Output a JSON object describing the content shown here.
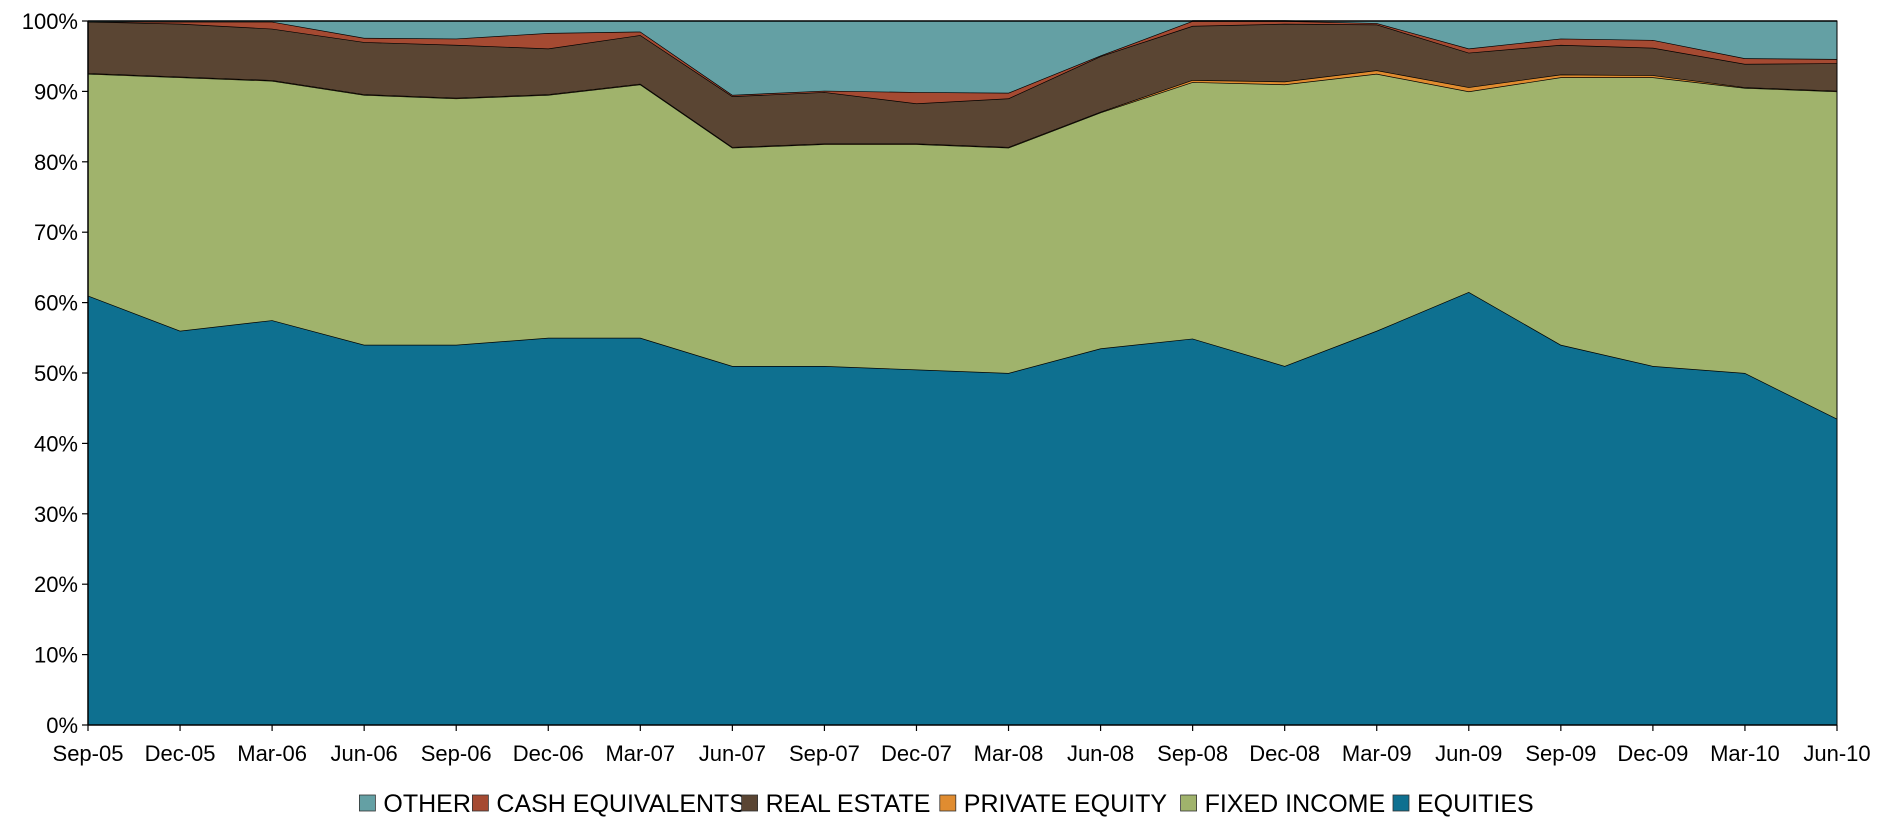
{
  "chart_data": {
    "type": "area",
    "stacked": true,
    "percent": true,
    "categories": [
      "Sep-05",
      "Dec-05",
      "Mar-06",
      "Jun-06",
      "Sep-06",
      "Dec-06",
      "Mar-07",
      "Jun-07",
      "Sep-07",
      "Dec-07",
      "Mar-08",
      "Jun-08",
      "Sep-08",
      "Dec-08",
      "Mar-09",
      "Jun-09",
      "Sep-09",
      "Dec-09",
      "Mar-10",
      "Jun-10"
    ],
    "yticks": [
      "0%",
      "10%",
      "20%",
      "30%",
      "40%",
      "50%",
      "60%",
      "70%",
      "80%",
      "90%",
      "100%"
    ],
    "ylim": [
      0,
      100
    ],
    "grid": false,
    "legend_position": "bottom",
    "series": [
      {
        "name": "EQUITIES",
        "color": "#0e7090",
        "values": [
          61.0,
          56.0,
          57.5,
          54.0,
          54.0,
          55.0,
          55.0,
          51.0,
          51.0,
          50.5,
          50.0,
          53.5,
          55.0,
          51.0,
          56.0,
          61.5,
          54.0,
          51.0,
          50.0,
          43.5
        ]
      },
      {
        "name": "FIXED INCOME",
        "color": "#a0b36c",
        "values": [
          31.5,
          36.0,
          34.0,
          35.5,
          35.0,
          34.5,
          36.0,
          31.0,
          31.5,
          32.0,
          32.0,
          33.5,
          36.5,
          40.0,
          36.5,
          28.5,
          38.0,
          41.0,
          40.5,
          46.5
        ]
      },
      {
        "name": "PRIVATE EQUITY",
        "color": "#e08c30",
        "values": [
          0.1,
          0.1,
          0.1,
          0.1,
          0.1,
          0.1,
          0.1,
          0.1,
          0.1,
          0.1,
          0.1,
          0.1,
          0.3,
          0.4,
          0.5,
          0.6,
          0.4,
          0.3,
          0.1,
          0.1
        ]
      },
      {
        "name": "REAL ESTATE",
        "color": "#5a4533",
        "values": [
          7.3,
          7.5,
          7.3,
          7.4,
          7.5,
          6.5,
          6.9,
          7.2,
          7.3,
          5.7,
          6.9,
          7.9,
          7.7,
          8.2,
          6.5,
          4.9,
          4.2,
          3.9,
          3.3,
          3.9
        ]
      },
      {
        "name": "CASH EQUIVALENTS",
        "color": "#a54a32",
        "values": [
          0.0,
          0.3,
          1.0,
          0.6,
          0.9,
          2.2,
          0.5,
          0.2,
          0.2,
          1.6,
          0.8,
          0.1,
          0.7,
          0.4,
          0.2,
          0.6,
          0.9,
          1.1,
          0.8,
          0.6
        ]
      },
      {
        "name": "OTHER",
        "color": "#64a0a4",
        "values": [
          0.1,
          0.1,
          0.1,
          2.4,
          2.5,
          1.7,
          1.5,
          10.5,
          9.9,
          10.1,
          10.2,
          4.9,
          0.0,
          0.0,
          0.3,
          3.9,
          2.5,
          2.7,
          5.3,
          5.4
        ]
      }
    ],
    "legend_order": [
      "OTHER",
      "CASH EQUIVALENTS",
      "REAL ESTATE",
      "PRIVATE EQUITY",
      "FIXED INCOME",
      "EQUITIES"
    ]
  }
}
